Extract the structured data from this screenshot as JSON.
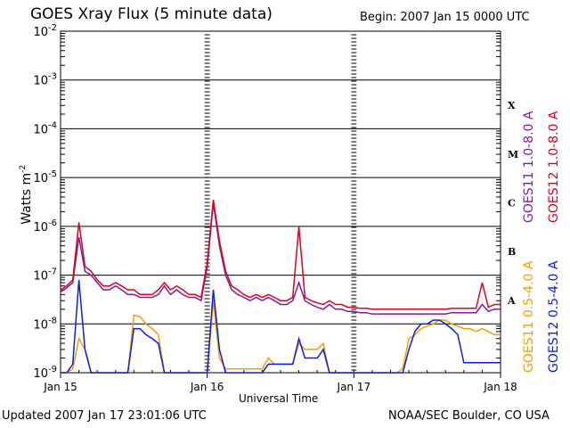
{
  "title": "GOES Xray Flux (5 minute data)",
  "begin": "Begin:  2007 Jan 15 0000 UTC",
  "updated": "Updated 2007 Jan 17 23:01:06 UTC",
  "credit": "NOAA/SEC Boulder, CO USA",
  "colors": {
    "goes11_long": "#7b1fa2",
    "goes12_long": "#e0001a",
    "goes11_short": "#f0a000",
    "goes12_short": "#0a1ee6"
  },
  "chart_data": {
    "type": "line",
    "xlabel": "Universal Time",
    "ylabel": "Watts m",
    "ylabel_sup": "-2",
    "y_scale": "log",
    "ylim": [
      "1e-9",
      "1e-2"
    ],
    "y_ticks": [
      {
        "base": "10",
        "exp": "-2"
      },
      {
        "base": "10",
        "exp": "-3"
      },
      {
        "base": "10",
        "exp": "-4"
      },
      {
        "base": "10",
        "exp": "-5"
      },
      {
        "base": "10",
        "exp": "-6"
      },
      {
        "base": "10",
        "exp": "-7"
      },
      {
        "base": "10",
        "exp": "-8"
      },
      {
        "base": "10",
        "exp": "-9"
      }
    ],
    "x_ticks": [
      "Jan 15",
      "Jan 16",
      "Jan 17",
      "Jan 18"
    ],
    "xlim_hours": [
      0,
      72
    ],
    "flare_classes": [
      {
        "label": "X",
        "flux": "1e-4"
      },
      {
        "label": "M",
        "flux": "1e-5"
      },
      {
        "label": "C",
        "flux": "1e-6"
      },
      {
        "label": "B",
        "flux": "1e-7"
      },
      {
        "label": "A",
        "flux": "1e-8"
      }
    ],
    "grid": true,
    "legend": [
      {
        "label": "GOES11 1.0-8.0 A",
        "color": "#7b1fa2"
      },
      {
        "label": "GOES12 1.0-8.0 A",
        "color": "#e0001a"
      },
      {
        "label": "GOES11 0.5-4.0 A",
        "color": "#f0a000"
      },
      {
        "label": "GOES12 0.5-4.0 A",
        "color": "#0a1ee6"
      }
    ],
    "series": [
      {
        "name": "GOES11 1.0-8.0 A",
        "color": "#7b1fa2",
        "x": [
          0,
          1,
          2,
          3,
          4,
          5,
          6,
          7,
          8,
          9,
          10,
          11,
          12,
          13,
          14,
          15,
          16,
          17,
          18,
          19,
          20,
          21,
          22,
          23,
          24,
          25,
          26,
          27,
          28,
          29,
          30,
          31,
          32,
          33,
          34,
          35,
          36,
          37,
          38,
          39,
          40,
          41,
          42,
          43,
          44,
          45,
          46,
          47,
          48,
          49,
          50,
          51,
          52,
          53,
          54,
          55,
          56,
          57,
          58,
          59,
          60,
          61,
          62,
          63,
          64,
          65,
          66,
          67,
          68,
          69,
          70,
          71,
          72
        ],
        "y": [
          4.5e-08,
          5.5e-08,
          7e-08,
          6e-07,
          1.2e-07,
          1e-07,
          7e-08,
          5e-08,
          5e-08,
          6e-08,
          5e-08,
          4e-08,
          4e-08,
          3.5e-08,
          3.5e-08,
          3.5e-08,
          4e-08,
          6e-08,
          4e-08,
          5e-08,
          4e-08,
          3.5e-08,
          3.5e-08,
          3e-08,
          1.5e-07,
          3e-06,
          4e-07,
          1e-07,
          5e-08,
          4e-08,
          3.5e-08,
          3e-08,
          3.5e-08,
          3e-08,
          3.5e-08,
          3e-08,
          2.5e-08,
          2.5e-08,
          3e-08,
          7e-08,
          3e-08,
          2.5e-08,
          2.2e-08,
          2e-08,
          2.5e-08,
          2e-08,
          2e-08,
          1.8e-08,
          1.8e-08,
          1.7e-08,
          1.7e-08,
          1.6e-08,
          1.6e-08,
          1.6e-08,
          1.6e-08,
          1.6e-08,
          1.6e-08,
          1.6e-08,
          1.6e-08,
          1.6e-08,
          1.6e-08,
          1.6e-08,
          1.6e-08,
          1.6e-08,
          1.7e-08,
          1.7e-08,
          1.7e-08,
          1.7e-08,
          1.7e-08,
          2.5e-08,
          1.8e-08,
          2e-08,
          2e-08
        ]
      },
      {
        "name": "GOES12 1.0-8.0 A",
        "color": "#e0001a",
        "x": [
          0,
          1,
          2,
          3,
          4,
          5,
          6,
          7,
          8,
          9,
          10,
          11,
          12,
          13,
          14,
          15,
          16,
          17,
          18,
          19,
          20,
          21,
          22,
          23,
          24,
          25,
          26,
          27,
          28,
          29,
          30,
          31,
          32,
          33,
          34,
          35,
          36,
          37,
          38,
          39,
          40,
          41,
          42,
          43,
          44,
          45,
          46,
          47,
          48,
          49,
          50,
          51,
          52,
          53,
          54,
          55,
          56,
          57,
          58,
          59,
          60,
          61,
          62,
          63,
          64,
          65,
          66,
          67,
          68,
          69,
          70,
          71,
          72
        ],
        "y": [
          5e-08,
          6e-08,
          8e-08,
          1.2e-06,
          1.5e-07,
          1.2e-07,
          8e-08,
          6e-08,
          6e-08,
          7e-08,
          6e-08,
          5e-08,
          5e-08,
          4e-08,
          4e-08,
          4e-08,
          5e-08,
          7e-08,
          5e-08,
          6e-08,
          5e-08,
          4e-08,
          4e-08,
          3.5e-08,
          1.8e-07,
          3.5e-06,
          5e-07,
          1.2e-07,
          6e-08,
          5e-08,
          4e-08,
          3.5e-08,
          4e-08,
          3.5e-08,
          4e-08,
          3.5e-08,
          3e-08,
          3e-08,
          3.5e-08,
          1e-06,
          3.5e-08,
          3e-08,
          2.7e-08,
          2.5e-08,
          3e-08,
          2.5e-08,
          2.5e-08,
          2.2e-08,
          2.2e-08,
          2.1e-08,
          2.1e-08,
          2e-08,
          2e-08,
          2e-08,
          2e-08,
          2e-08,
          2e-08,
          2e-08,
          2e-08,
          2e-08,
          2e-08,
          2e-08,
          2e-08,
          2e-08,
          2.1e-08,
          2.1e-08,
          2.1e-08,
          2.1e-08,
          2.1e-08,
          7e-08,
          2.2e-08,
          2.5e-08,
          2.5e-08
        ]
      },
      {
        "name": "GOES11 0.5-4.0 A",
        "color": "#f0a000",
        "x": [
          0,
          1,
          2,
          3,
          4,
          5,
          6,
          7,
          8,
          9,
          10,
          11,
          12,
          13,
          14,
          15,
          16,
          17,
          18,
          19,
          20,
          21,
          22,
          23,
          24,
          25,
          26,
          27,
          28,
          29,
          30,
          31,
          32,
          33,
          34,
          35,
          36,
          37,
          38,
          39,
          40,
          41,
          42,
          43,
          44,
          45,
          46,
          47,
          48,
          49,
          50,
          51,
          52,
          53,
          54,
          55,
          56,
          57,
          58,
          59,
          60,
          61,
          62,
          63,
          64,
          65,
          66,
          67,
          68,
          69,
          70,
          71,
          72
        ],
        "y": [
          1e-09,
          1e-09,
          1.2e-09,
          5e-09,
          3e-09,
          1e-09,
          1e-09,
          1e-09,
          1e-09,
          1e-09,
          1e-09,
          1e-09,
          1.5e-08,
          1.4e-08,
          1e-08,
          8e-09,
          6e-09,
          1e-09,
          1e-09,
          1e-09,
          1e-09,
          1e-09,
          1e-09,
          1e-09,
          1e-09,
          3e-08,
          2e-09,
          1.2e-09,
          1.2e-09,
          1.2e-09,
          1.2e-09,
          1.2e-09,
          1.2e-09,
          1.2e-09,
          2e-09,
          1.5e-09,
          1.5e-09,
          1.5e-09,
          1.5e-09,
          4e-09,
          3e-09,
          3e-09,
          3e-09,
          4e-09,
          1e-09,
          1e-09,
          1e-09,
          1e-09,
          1e-09,
          1e-09,
          1e-09,
          1e-09,
          1e-09,
          1e-09,
          1e-09,
          1e-09,
          1.2e-09,
          5e-09,
          6e-09,
          8e-09,
          9e-09,
          1e-08,
          1.2e-08,
          1.2e-08,
          1e-08,
          9e-09,
          8e-09,
          8e-09,
          7e-09,
          8e-09,
          7e-09,
          6e-09,
          6e-09
        ]
      },
      {
        "name": "GOES12 0.5-4.0 A",
        "color": "#0a1ee6",
        "x": [
          0,
          1,
          2,
          3,
          4,
          5,
          6,
          7,
          8,
          9,
          10,
          11,
          12,
          13,
          14,
          15,
          16,
          17,
          18,
          19,
          20,
          21,
          22,
          23,
          24,
          25,
          26,
          27,
          28,
          29,
          30,
          31,
          32,
          33,
          34,
          35,
          36,
          37,
          38,
          39,
          40,
          41,
          42,
          43,
          44,
          45,
          46,
          47,
          48,
          49,
          50,
          51,
          52,
          53,
          54,
          55,
          56,
          57,
          58,
          59,
          60,
          61,
          62,
          63,
          64,
          65,
          66,
          67,
          68,
          69,
          70,
          71,
          72
        ],
        "y": [
          1e-09,
          1e-09,
          1.5e-09,
          8e-08,
          3e-09,
          1e-09,
          1e-09,
          1e-09,
          1e-09,
          1e-09,
          1e-09,
          1e-09,
          8e-09,
          8e-09,
          6e-09,
          5e-09,
          4e-09,
          1e-09,
          1e-09,
          1e-09,
          1e-09,
          1e-09,
          1e-09,
          1e-09,
          1e-09,
          5e-08,
          3e-09,
          1e-09,
          1e-09,
          1e-09,
          1e-09,
          1e-09,
          1e-09,
          1e-09,
          1.5e-09,
          1.5e-09,
          1.5e-09,
          1.5e-09,
          1.5e-09,
          5e-09,
          2e-09,
          2e-09,
          2e-09,
          3e-09,
          1e-09,
          1e-09,
          1e-09,
          1e-09,
          1e-09,
          1e-09,
          1e-09,
          1e-09,
          1e-09,
          1e-09,
          1e-09,
          1e-09,
          1e-09,
          3e-09,
          7e-09,
          1e-08,
          1e-08,
          1.2e-08,
          1.2e-08,
          1e-08,
          8e-09,
          6e-09,
          1.6e-09,
          1.6e-09,
          1.6e-09,
          1.6e-09,
          1.6e-09,
          1.6e-09,
          1.6e-09
        ]
      }
    ]
  }
}
